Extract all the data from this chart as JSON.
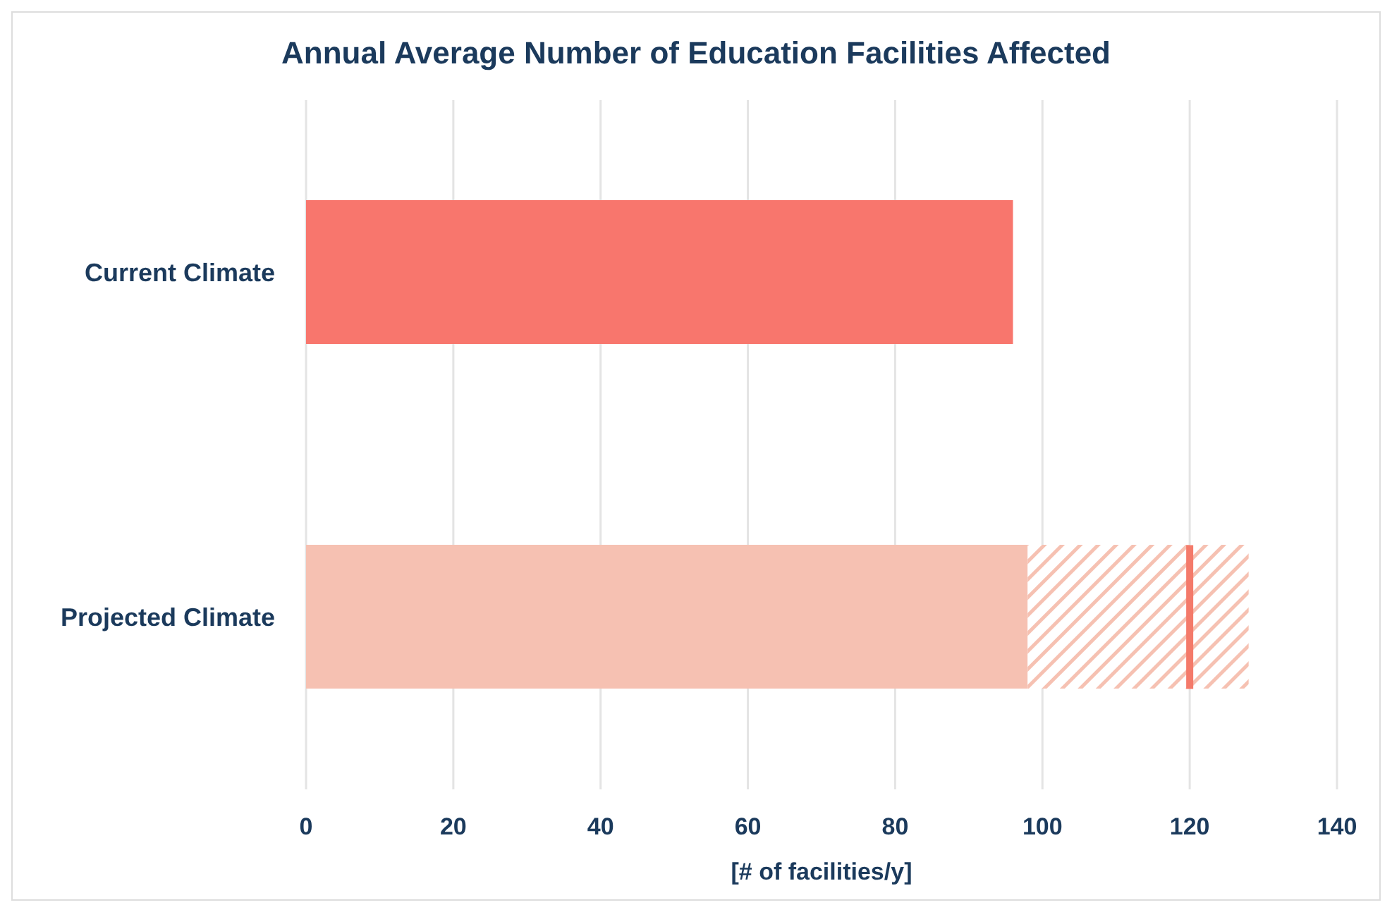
{
  "chart_data": {
    "type": "bar",
    "orientation": "horizontal",
    "stacked": true,
    "title": "Annual Average Number of Education Facilities Affected",
    "xlabel": "[# of facilities/y]",
    "categories": [
      "Current Climate",
      "Projected Climate"
    ],
    "series": [
      {
        "colors": [
          "#f8766d",
          "#f6c1b2"
        ],
        "values": [
          96,
          98
        ]
      },
      {
        "color": "#f6c1b2",
        "values": [
          null,
          30
        ]
      }
    ],
    "ref_lines": [
      {
        "axis": "x",
        "value": 120,
        "color": "#f47a6a"
      }
    ],
    "xlim": [
      0,
      140
    ],
    "xticks": [
      0,
      20,
      40,
      60,
      80,
      100,
      120,
      140
    ],
    "grid": "x",
    "legend": false
  }
}
